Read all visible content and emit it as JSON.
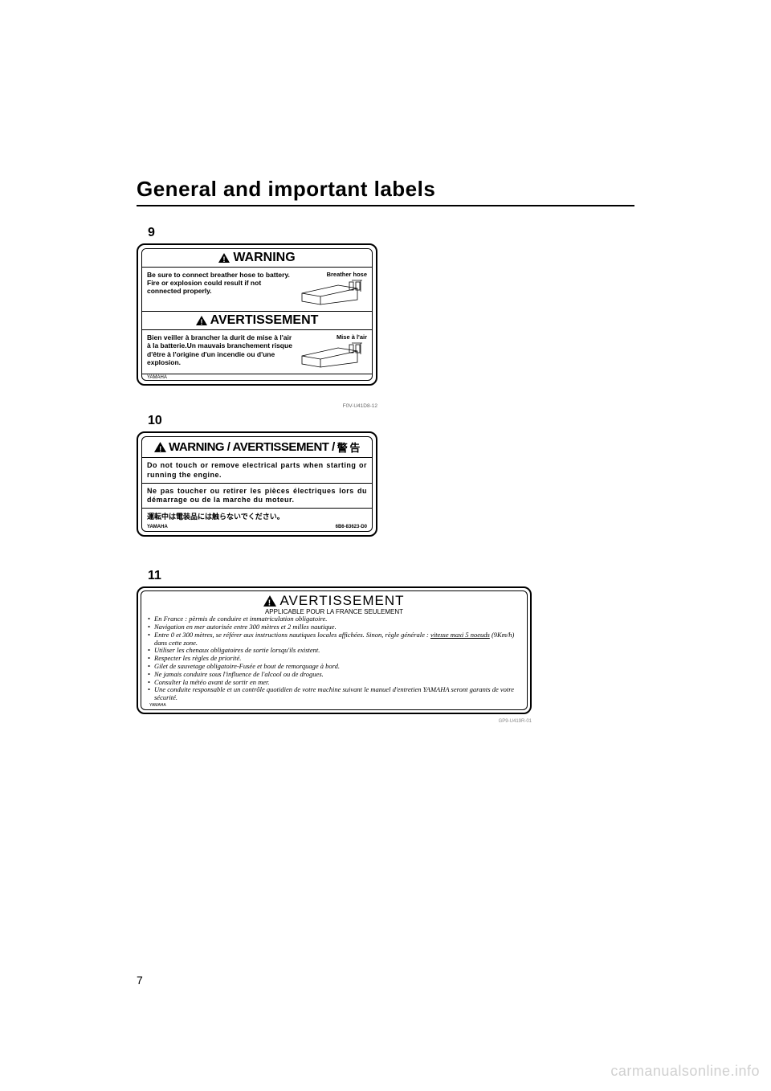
{
  "page": {
    "title": "General and important labels",
    "number": "7",
    "watermark": "carmanualsonline.info"
  },
  "label9": {
    "num": "9",
    "head_en": "WARNING",
    "head_fr": "AVERTISSEMENT",
    "en_caption": "Breather hose",
    "en_text": "Be sure to connect breather hose to battery. Fire or explosion could result if not connected properly.",
    "fr_caption": "Mise à l'air",
    "fr_text": "Bien veiller à brancher la durit de mise à l'air à la batterie.Un mauvais branchement risque d'être à l'origine d'un incendie ou d'une explosion.",
    "brand": "YAMAHA",
    "partno": "F0V-U41D8-12"
  },
  "label10": {
    "num": "10",
    "head": "WARNING / AVERTISSEMENT /",
    "head_jp": "警 告",
    "en": "Do not touch or remove electrical parts when starting or running the engine.",
    "fr": "Ne pas toucher ou retirer les pièces électriques lors du démarrage ou de la marche du moteur.",
    "jp": "運転中は電装品には触らないでください。",
    "brand": "YAMAHA",
    "partno": "6B6-83623-D0"
  },
  "label11": {
    "num": "11",
    "head": "AVERTISSEMENT",
    "sub": "APPLICABLE POUR LA FRANCE SEULEMENT",
    "items": [
      "En France : pèrmis de conduire et immatriculation obligatoire.",
      "Navigation en mer autorisée entre 300 mètres et 2 milles nautique.",
      "Entre 0 et 300 mètres, se référer aux instructions nautiques locales affichées. Sinon, règle générale : <span class='underline'>vitesse maxi 5 noeuds</span> (9Km/h) dans cette zone.",
      "Utiliser les chenaux obligatoires de sortie lorsqu'ils existent.",
      "Respecter les règles de priorité.",
      "Gilet de sauvetage obligatoire-Fusée et bout de remorquage à bord.",
      "Ne jamais conduire sous l'influence de l'alcool ou de drogues.",
      "Consulter la météo avant de sortir en mer.",
      "Une conduite responsable et un contrôle quotidien de votre machine suivant le manuel d'entretien YAMAHA seront garants de votre sécurité."
    ],
    "brand": "YAMAHA",
    "partno": "GP9-U419R-01"
  }
}
